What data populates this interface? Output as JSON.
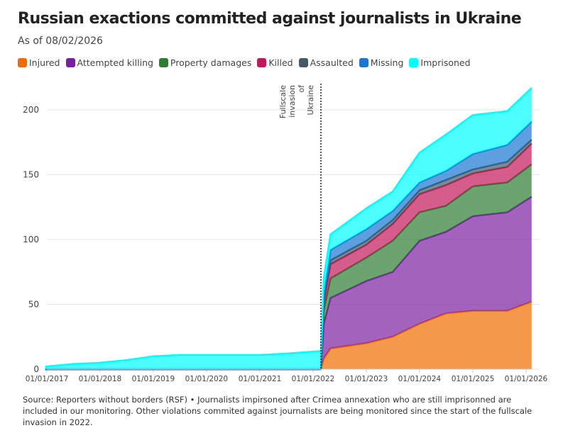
{
  "chart_data": {
    "type": "area",
    "stacked": true,
    "title": "Russian exactions committed against journalists in Ukraine",
    "subtitle": "As of 08/02/2026",
    "xlabel": "",
    "ylabel": "",
    "ylim": [
      0,
      215
    ],
    "yticks": [
      "0",
      "50",
      "100",
      "150",
      "200"
    ],
    "xticks": [
      {
        "date": "2017-01-01",
        "label": "01/01/2017"
      },
      {
        "date": "2018-01-01",
        "label": "01/01/2018"
      },
      {
        "date": "2019-01-01",
        "label": "01/01/2019"
      },
      {
        "date": "2020-01-01",
        "label": "01/01/2020"
      },
      {
        "date": "2021-01-01",
        "label": "01/01/2021"
      },
      {
        "date": "2022-01-01",
        "label": "01/01/2022"
      },
      {
        "date": "2023-01-01",
        "label": "01/01/2023"
      },
      {
        "date": "2024-01-01",
        "label": "01/01/2024"
      },
      {
        "date": "2025-01-01",
        "label": "01/01/2025"
      },
      {
        "date": "2026-01-01",
        "label": "01/01/2026"
      }
    ],
    "grid": true,
    "legend_position": "top",
    "annotation": {
      "date": "2022-02-24",
      "lines": [
        "Fullscale",
        "invasion",
        "of",
        "Ukraine"
      ]
    },
    "x": [
      "2016-12-20",
      "2017-07-01",
      "2018-01-01",
      "2018-07-01",
      "2019-01-01",
      "2019-07-01",
      "2020-01-01",
      "2021-01-01",
      "2021-07-01",
      "2022-02-23",
      "2022-02-25",
      "2022-03-15",
      "2022-05-01",
      "2023-01-01",
      "2023-07-01",
      "2024-01-01",
      "2024-07-01",
      "2025-01-01",
      "2025-08-25",
      "2026-02-08"
    ],
    "series": [
      {
        "name": "Injured",
        "color": "#ef6c00",
        "values": [
          0,
          0,
          0,
          0,
          0,
          0,
          0,
          0,
          0,
          0,
          1,
          8,
          16,
          20,
          25,
          35,
          43,
          45,
          45,
          52
        ]
      },
      {
        "name": "Attempted killing",
        "color": "#7b1fa2",
        "values": [
          0,
          0,
          0,
          0,
          0,
          0,
          0,
          0,
          0,
          0,
          1,
          27,
          39,
          48,
          50,
          64,
          63,
          73,
          76,
          81
        ]
      },
      {
        "name": "Property damages",
        "color": "#2e7d32",
        "values": [
          0,
          0,
          0,
          0,
          0,
          0,
          0,
          0,
          0,
          0,
          0,
          10,
          15,
          18,
          24,
          22,
          20,
          23,
          23,
          25
        ]
      },
      {
        "name": "Killed",
        "color": "#c2185b",
        "values": [
          0,
          0,
          0,
          0,
          0,
          0,
          0,
          0,
          0,
          0,
          0,
          7,
          11,
          10,
          13,
          14,
          16,
          10,
          12,
          16
        ]
      },
      {
        "name": "Assaulted",
        "color": "#455a64",
        "values": [
          0,
          0,
          0,
          0,
          0,
          0,
          0,
          0,
          0,
          0,
          0,
          2,
          3,
          3,
          3,
          3,
          4,
          3,
          4,
          3
        ]
      },
      {
        "name": "Missing",
        "color": "#1976d2",
        "values": [
          0,
          0,
          0,
          0,
          0,
          0,
          0,
          0,
          0,
          0,
          0,
          4,
          8,
          9,
          7,
          6,
          7,
          12,
          13,
          14
        ]
      },
      {
        "name": "Imprisoned",
        "color": "#00ffff",
        "values": [
          2,
          4,
          5,
          7,
          10,
          11,
          11,
          11,
          12,
          14,
          14,
          12,
          12,
          16,
          15,
          23,
          28,
          30,
          26,
          26
        ]
      }
    ]
  },
  "source": "Source: Reporters without borders (RSF) • Journalists impirsoned after Crimea annexation who are still imprisonned are included in our monitoring. Other violations commited against journalists are being monitored since the start of the fullscale invasion in 2022."
}
